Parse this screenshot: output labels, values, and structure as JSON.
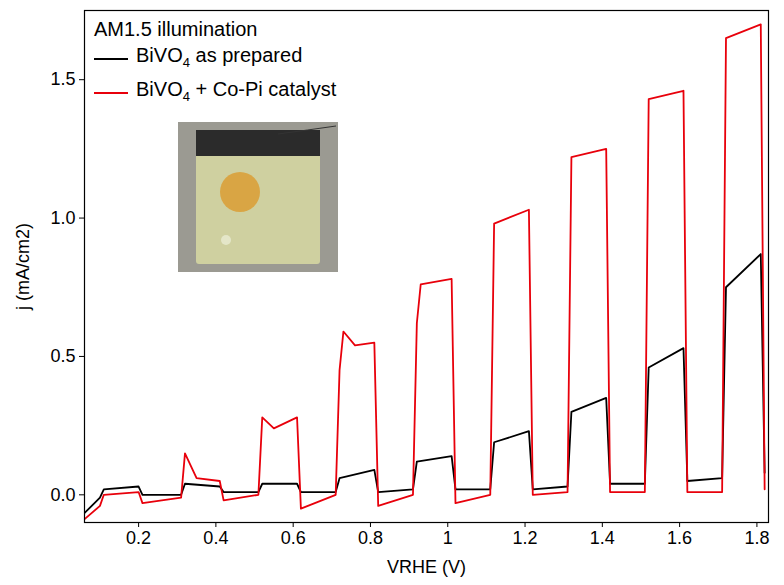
{
  "chart_data": {
    "type": "line",
    "title": "AM1.5 illumination",
    "xlabel": "VRHE (V)",
    "ylabel": "j (mA/cm2)",
    "xlim": [
      0.06,
      1.83
    ],
    "ylim": [
      -0.1,
      1.75
    ],
    "xticks": [
      0.2,
      0.4,
      0.6,
      0.8,
      1.0,
      1.2,
      1.4,
      1.6,
      1.8
    ],
    "yticks": [
      {
        "value": 0,
        "label": "0.0"
      },
      0.5,
      {
        "value": 1,
        "label": "1.0"
      },
      1.5
    ],
    "grid": false,
    "legend": "top-left",
    "series": [
      {
        "name": "BiVO4 as prepared",
        "color": "#000000",
        "x": [
          0.05,
          0.1,
          0.11,
          0.2,
          0.21,
          0.31,
          0.32,
          0.41,
          0.42,
          0.51,
          0.52,
          0.61,
          0.62,
          0.71,
          0.72,
          0.81,
          0.82,
          0.91,
          0.92,
          1.01,
          1.02,
          1.11,
          1.12,
          1.21,
          1.22,
          1.31,
          1.32,
          1.41,
          1.42,
          1.51,
          1.52,
          1.61,
          1.62,
          1.71,
          1.72,
          1.81,
          1.82
        ],
        "values": [
          -0.08,
          -0.01,
          0.02,
          0.03,
          0.0,
          0.0,
          0.04,
          0.03,
          0.01,
          0.01,
          0.04,
          0.04,
          0.01,
          0.01,
          0.06,
          0.09,
          0.01,
          0.02,
          0.12,
          0.14,
          0.02,
          0.02,
          0.19,
          0.23,
          0.02,
          0.03,
          0.3,
          0.35,
          0.04,
          0.04,
          0.46,
          0.53,
          0.05,
          0.06,
          0.75,
          0.87,
          0.08
        ]
      },
      {
        "name": "BiVO4 + Co-Pi catalyst",
        "color": "#e8000b",
        "x": [
          0.05,
          0.1,
          0.11,
          0.2,
          0.21,
          0.31,
          0.32,
          0.35,
          0.41,
          0.42,
          0.51,
          0.52,
          0.55,
          0.61,
          0.62,
          0.71,
          0.72,
          0.73,
          0.76,
          0.81,
          0.82,
          0.91,
          0.92,
          0.93,
          1.01,
          1.02,
          1.11,
          1.12,
          1.21,
          1.22,
          1.31,
          1.32,
          1.41,
          1.42,
          1.51,
          1.52,
          1.61,
          1.62,
          1.71,
          1.72,
          1.81,
          1.82
        ],
        "values": [
          -0.1,
          -0.04,
          0.0,
          0.01,
          -0.03,
          -0.01,
          0.15,
          0.06,
          0.05,
          -0.02,
          0.0,
          0.28,
          0.24,
          0.28,
          -0.05,
          0.0,
          0.45,
          0.59,
          0.54,
          0.55,
          -0.04,
          0.0,
          0.62,
          0.76,
          0.78,
          -0.03,
          0.0,
          0.98,
          1.03,
          0.0,
          0.01,
          1.22,
          1.25,
          0.01,
          0.01,
          1.43,
          1.46,
          0.01,
          0.01,
          1.65,
          1.7,
          0.02
        ]
      }
    ]
  }
}
